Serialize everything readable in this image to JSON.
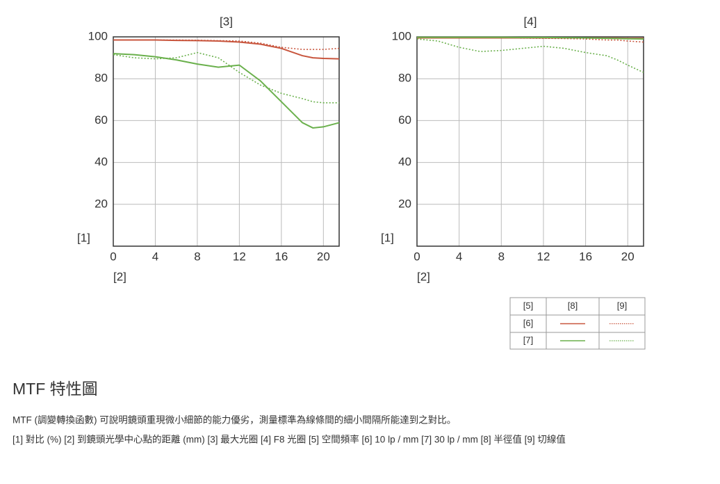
{
  "chart_data": [
    {
      "type": "line",
      "title": "[3]",
      "ylabel": "[1]",
      "xlabel": "[2]",
      "x": [
        0,
        2,
        4,
        6,
        8,
        10,
        12,
        14,
        16,
        18,
        19,
        20,
        21.5
      ],
      "xlim": [
        0,
        21.5
      ],
      "ylim": [
        0,
        100
      ],
      "xticks": [
        0,
        4,
        8,
        12,
        16,
        20
      ],
      "yticks": [
        20,
        40,
        60,
        80,
        100
      ],
      "grid": true,
      "series": [
        {
          "color": "#c8553d",
          "dashed": false,
          "values": [
            98.5,
            98.5,
            98.5,
            98.3,
            98.2,
            98,
            97.5,
            96.5,
            94.5,
            91,
            90,
            89.7,
            89.5
          ]
        },
        {
          "color": "#c8553d",
          "dashed": true,
          "values": [
            98.5,
            98.5,
            98.5,
            98.5,
            98.4,
            98.2,
            98,
            97,
            95,
            94,
            94,
            94,
            94.5
          ]
        },
        {
          "color": "#6ab04c",
          "dashed": false,
          "values": [
            92,
            91.5,
            90.5,
            89,
            87,
            85.5,
            86.5,
            79,
            69,
            59,
            56.5,
            57,
            59
          ]
        },
        {
          "color": "#6ab04c",
          "dashed": true,
          "values": [
            91.5,
            90,
            89.5,
            90,
            92.5,
            90,
            83,
            77,
            73,
            70.5,
            69,
            68.5,
            68.5
          ]
        }
      ]
    },
    {
      "type": "line",
      "title": "[4]",
      "ylabel": "[1]",
      "xlabel": "[2]",
      "x": [
        0,
        2,
        4,
        6,
        8,
        10,
        12,
        14,
        16,
        18,
        19,
        20,
        21.5
      ],
      "xlim": [
        0,
        21.5
      ],
      "ylim": [
        0,
        100
      ],
      "xticks": [
        0,
        4,
        8,
        12,
        16,
        20
      ],
      "yticks": [
        20,
        40,
        60,
        80,
        100
      ],
      "grid": true,
      "series": [
        {
          "color": "#c8553d",
          "dashed": false,
          "values": [
            99.5,
            99.5,
            99.5,
            99.5,
            99.5,
            99.5,
            99.5,
            99.5,
            99.5,
            99.4,
            99.4,
            99.3,
            99.3
          ]
        },
        {
          "color": "#c8553d",
          "dashed": true,
          "values": [
            99.5,
            99.5,
            99.5,
            99.5,
            99.5,
            99.4,
            99.3,
            99.2,
            99,
            98.5,
            98.5,
            98,
            97.5
          ]
        },
        {
          "color": "#6ab04c",
          "dashed": false,
          "values": [
            99.8,
            99.8,
            99.8,
            99.8,
            99.8,
            99.7,
            99.7,
            99.6,
            99.5,
            99.3,
            99.2,
            99.1,
            99
          ]
        },
        {
          "color": "#6ab04c",
          "dashed": true,
          "values": [
            99,
            98,
            95,
            93,
            93.5,
            94.5,
            95.5,
            94.5,
            92.5,
            91,
            89,
            86.5,
            83
          ]
        }
      ]
    }
  ],
  "legend_table": {
    "header": [
      "[5]",
      "[8]",
      "[9]"
    ],
    "rows": [
      "[6]",
      "[7]"
    ]
  },
  "heading": "MTF 特性圖",
  "description": [
    "MTF (調變轉換函數) 可說明鏡頭重現微小細節的能力優劣，測量標準為線條間的細小間隔所能達到之對比。",
    "[1] 對比 (%) [2] 到鏡頭光學中心點的距離 (mm) [3] 最大光圈 [4] F8 光圈 [5] 空間頻率 [6] 10 lp / mm [7] 30 lp / mm [8] 半徑值 [9] 切線值"
  ]
}
